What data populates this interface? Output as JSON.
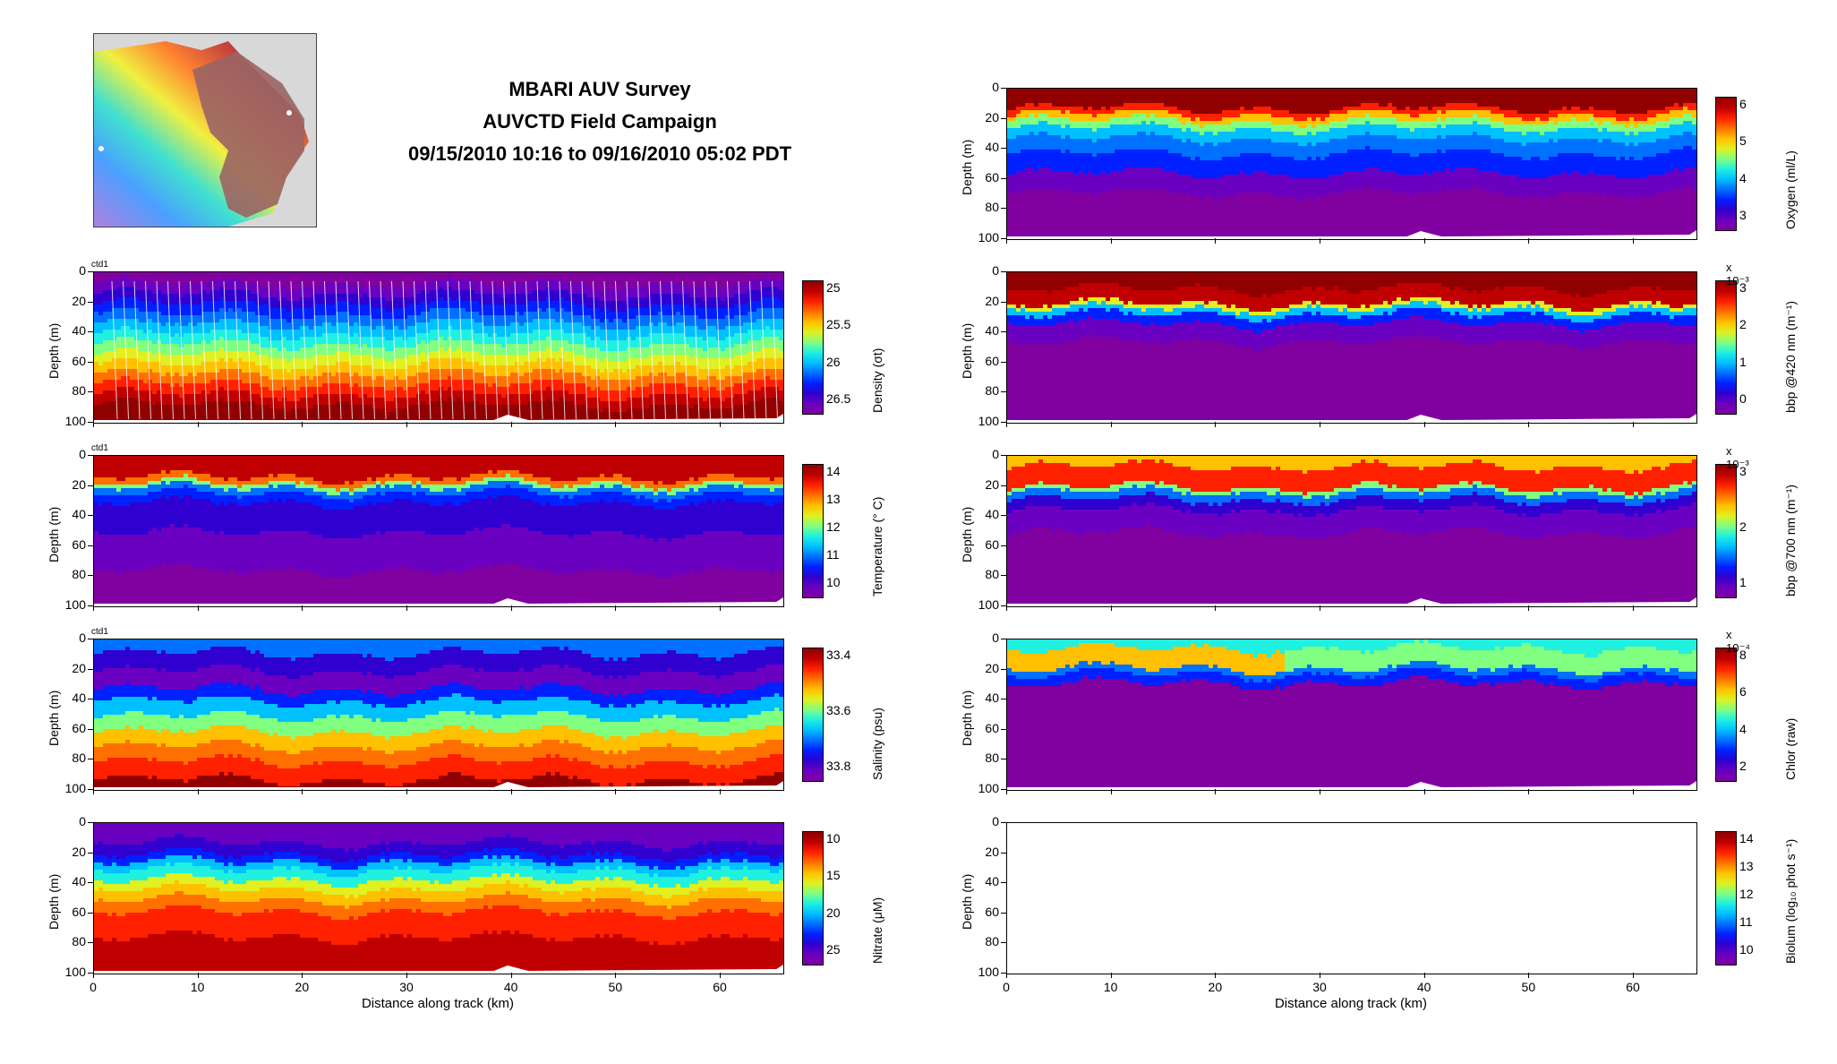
{
  "title": {
    "line1": "MBARI AUV Survey",
    "line2": "AUVCTD Field Campaign",
    "line3": "09/15/2010 10:16 to 09/16/2010 05:02 PDT"
  },
  "axes": {
    "ylabel": "Depth (m)",
    "xlabel": "Distance along track (km)",
    "yticks": [
      "0",
      "20",
      "40",
      "60",
      "80",
      "100"
    ],
    "xticks": [
      "0",
      "10",
      "20",
      "30",
      "40",
      "50",
      "60"
    ],
    "ctd_label": "ctd1"
  },
  "chart_data": [
    {
      "type": "heatmap",
      "name": "density",
      "colorbar_label": "Density (σt)",
      "cb_ticks": [
        "25",
        "25.5",
        "26",
        "26.5"
      ],
      "cb_exp": "",
      "xlim": [
        0,
        66
      ],
      "ylim": [
        0,
        100
      ],
      "palette": "jet_reverse"
    },
    {
      "type": "heatmap",
      "name": "temperature",
      "colorbar_label": "Temperature (° C)",
      "cb_ticks": [
        "14",
        "13",
        "12",
        "11",
        "10"
      ],
      "cb_exp": "",
      "xlim": [
        0,
        66
      ],
      "ylim": [
        0,
        100
      ],
      "palette": "jet"
    },
    {
      "type": "heatmap",
      "name": "salinity",
      "colorbar_label": "Salinity (psu)",
      "cb_ticks": [
        "33.4",
        "33.6",
        "33.8"
      ],
      "cb_exp": "",
      "xlim": [
        0,
        66
      ],
      "ylim": [
        0,
        100
      ],
      "palette": "jet_reverse"
    },
    {
      "type": "heatmap",
      "name": "nitrate",
      "colorbar_label": "Nitrate (μM)",
      "cb_ticks": [
        "10",
        "15",
        "20",
        "25"
      ],
      "cb_exp": "",
      "xlim": [
        0,
        66
      ],
      "ylim": [
        0,
        100
      ],
      "palette": "jet_reverse"
    },
    {
      "type": "heatmap",
      "name": "oxygen",
      "colorbar_label": "Oxygen (ml/L)",
      "cb_ticks": [
        "6",
        "5",
        "4",
        "3"
      ],
      "cb_exp": "",
      "xlim": [
        0,
        66
      ],
      "ylim": [
        0,
        100
      ],
      "palette": "jet"
    },
    {
      "type": "heatmap",
      "name": "bbp420",
      "colorbar_label": "bbp @420 nm (m⁻¹)",
      "cb_ticks": [
        "3",
        "2",
        "1",
        "0"
      ],
      "cb_exp": "x 10⁻³",
      "xlim": [
        0,
        66
      ],
      "ylim": [
        0,
        100
      ],
      "palette": "jet"
    },
    {
      "type": "heatmap",
      "name": "bbp700",
      "colorbar_label": "bbp @700 nm (m⁻¹)",
      "cb_ticks": [
        "3",
        "2",
        "1"
      ],
      "cb_exp": "x 10⁻³",
      "xlim": [
        0,
        66
      ],
      "ylim": [
        0,
        100
      ],
      "palette": "jet"
    },
    {
      "type": "heatmap",
      "name": "chlor",
      "colorbar_label": "Chlor (raw)",
      "cb_ticks": [
        "8",
        "6",
        "4",
        "2"
      ],
      "cb_exp": "x 10⁻⁴",
      "xlim": [
        0,
        66
      ],
      "ylim": [
        0,
        100
      ],
      "palette": "jet"
    },
    {
      "type": "heatmap",
      "name": "biolum",
      "colorbar_label": "Biolum (log₁₀ phot s⁻¹)",
      "cb_ticks": [
        "14",
        "13",
        "12",
        "11",
        "10"
      ],
      "cb_exp": "",
      "xlim": [
        0,
        66
      ],
      "ylim": [
        0,
        100
      ],
      "palette": "jet",
      "empty": true
    }
  ]
}
